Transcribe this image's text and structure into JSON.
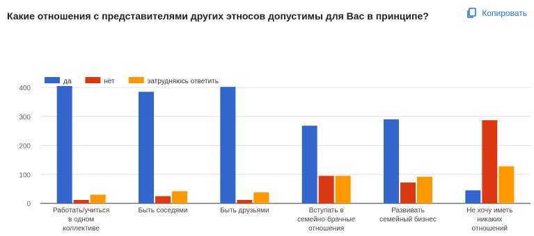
{
  "header": {
    "title": "Какие отношения с представителями других этносов допустимы для Вас в принципе?",
    "copy_label": "Копировать"
  },
  "icons": {
    "copy": "copy-icon"
  },
  "colors": {
    "accent": "#1a73e8"
  },
  "chart_data": {
    "type": "bar",
    "categories": [
      [
        "Работать/учиться",
        "в одном",
        "коллективе"
      ],
      [
        "Быть соседями"
      ],
      [
        "Быть друзьями"
      ],
      [
        "Вступать в",
        "семейно-брачные",
        "отношения"
      ],
      [
        "Развивать",
        "семейный бизнес"
      ],
      [
        "Не хочу иметь",
        "никаких",
        "отношений"
      ]
    ],
    "series": [
      {
        "name": "да",
        "color": "#3366cc",
        "values": [
          405,
          385,
          402,
          268,
          290,
          45
        ]
      },
      {
        "name": "нет",
        "color": "#dc3912",
        "values": [
          12,
          25,
          12,
          95,
          72,
          287
        ]
      },
      {
        "name": "затрудняюсь ответить",
        "color": "#ff9900",
        "values": [
          30,
          42,
          38,
          95,
          92,
          128
        ]
      }
    ],
    "ylim": [
      0,
      400
    ],
    "yticks": [
      0,
      100,
      200,
      300,
      400
    ],
    "grid": true,
    "legend": "top-left"
  }
}
